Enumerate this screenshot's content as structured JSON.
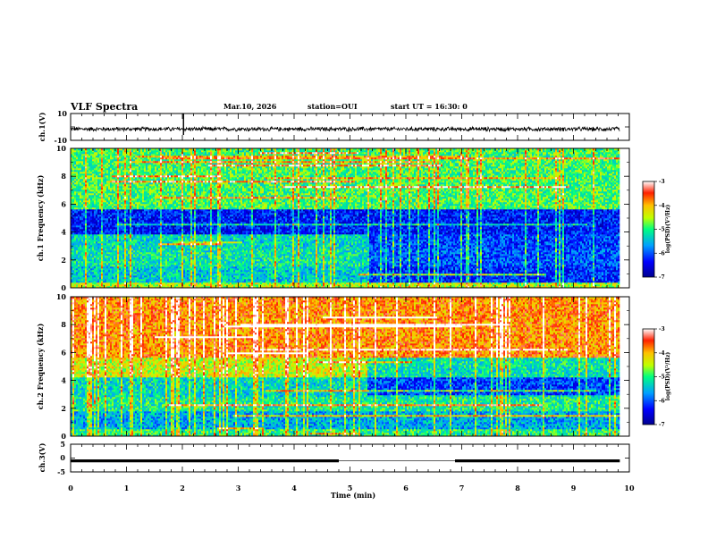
{
  "header": {
    "title": "VLF Spectra",
    "date": "Mar.10, 2026",
    "station": "station=OUI",
    "start": "start UT =  16:30: 0"
  },
  "chart_data": {
    "type": "heatmap",
    "xlabel": "Time (min)",
    "xlim": [
      0,
      10
    ],
    "xticks": [
      0,
      1,
      2,
      3,
      4,
      5,
      6,
      7,
      8,
      9,
      10
    ],
    "data_end_min": 9.83,
    "panels": [
      {
        "id": "ch1-waveform",
        "type": "line",
        "ylabel": "ch.1(V)",
        "ylim": [
          -10,
          10
        ],
        "ytick_labels": [
          "10",
          "-10"
        ],
        "baseline_v": -1.6,
        "amplitude_v": 1.8,
        "spikes": [
          {
            "t": 2.02,
            "v_min": -6,
            "v_max": 10
          }
        ]
      },
      {
        "id": "ch1-spectrogram",
        "type": "heatmap",
        "ylabel": "ch.1 Frequency (kHz)",
        "ylim": [
          0,
          10
        ],
        "yticks": [
          0,
          2,
          4,
          6,
          8,
          10
        ],
        "regime": [
          {
            "f_max": 0.4,
            "level": -4.5
          },
          {
            "f_max": 1.6,
            "level": -5.4
          },
          {
            "f_max": 2.8,
            "level": -5.2
          },
          {
            "f_max": 3.8,
            "level": -5.3
          },
          {
            "f_max": 5.6,
            "level": -6.3
          },
          {
            "f_max": 10,
            "level": -4.9
          }
        ],
        "late_shift": {
          "t_start": 5.3,
          "f_min": 0.4,
          "f_max": 3.8,
          "delta": -0.8
        },
        "colorbar": {
          "label": "log(PSD)(V²/Hz)",
          "range": [
            -7,
            -3
          ],
          "ticks": [
            "-3",
            "-4",
            "-5",
            "-6",
            "-7"
          ]
        }
      },
      {
        "id": "ch2-spectrogram",
        "type": "heatmap",
        "ylabel": "ch.2 Frequency (kHz)",
        "ylim": [
          0,
          10
        ],
        "yticks": [
          0,
          2,
          4,
          6,
          8,
          10
        ],
        "regime": [
          {
            "f_max": 0.5,
            "level": -5.0
          },
          {
            "f_max": 1.8,
            "level": -5.6
          },
          {
            "f_max": 2.8,
            "level": -5.1
          },
          {
            "f_max": 4.2,
            "level": -5.3
          },
          {
            "f_max": 5.6,
            "level": -4.4
          },
          {
            "f_max": 10,
            "level": -3.8
          }
        ],
        "late_shift": {
          "t_start": 5.3,
          "f_min": 3.0,
          "f_max": 5.6,
          "delta": -0.8
        },
        "colorbar": {
          "label": "log(PSD)(V²/Hz)",
          "range": [
            -7,
            -3
          ],
          "ticks": [
            "-3",
            "-4",
            "-5",
            "-6",
            "-7"
          ]
        }
      },
      {
        "id": "ch3-waveform",
        "type": "line",
        "ylabel": "ch.3(V)",
        "ylim": [
          -5,
          5
        ],
        "ytick_labels": [
          "5",
          "0",
          "-5"
        ],
        "level_v": -1.0,
        "gaps": [
          [
            4.8,
            6.88
          ]
        ]
      }
    ]
  }
}
